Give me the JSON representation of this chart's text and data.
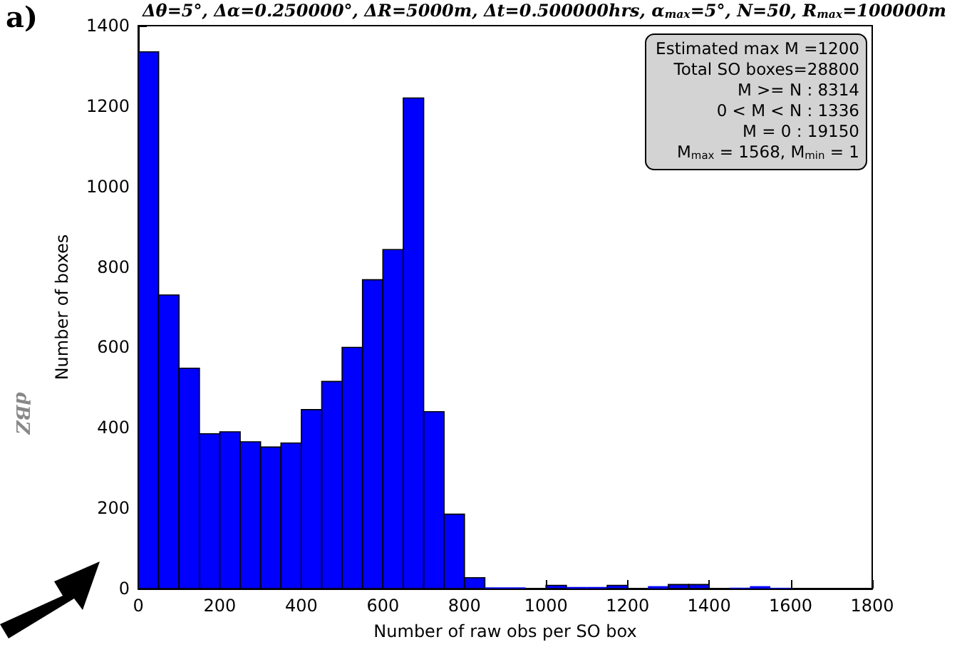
{
  "chart_data": {
    "type": "histogram",
    "title": "Δθ=5°, Δα=0.250000°, ΔR=5000m, Δt=0.500000hrs, α$_{max}$=5°, N=50, R$_{max}$=100000m",
    "xlabel": "Number of raw obs per SO box",
    "ylabel": "Number of boxes",
    "bins": [
      0,
      50,
      100,
      150,
      200,
      250,
      300,
      350,
      400,
      450,
      500,
      550,
      600,
      650,
      700,
      750,
      800,
      850,
      900,
      950,
      1000,
      1050,
      1100,
      1150,
      1200,
      1250,
      1300,
      1350,
      1400,
      1450,
      1500,
      1550,
      1600
    ],
    "values": [
      1335,
      730,
      548,
      385,
      390,
      365,
      352,
      362,
      445,
      515,
      600,
      768,
      843,
      1220,
      440,
      185,
      27,
      3,
      3,
      0,
      8,
      4,
      4,
      8,
      0,
      6,
      10,
      10,
      0,
      2,
      6,
      2
    ],
    "color": "#0000ff",
    "xlim": [
      0,
      1800
    ],
    "xticks": [
      0,
      200,
      400,
      600,
      800,
      1000,
      1200,
      1400,
      1600,
      1800
    ],
    "ylim": [
      0,
      1400
    ],
    "yticks": [
      0,
      200,
      400,
      600,
      800,
      1000,
      1200,
      1400
    ],
    "grid": false,
    "annotations": [
      "a)",
      "Estimated max M =1200",
      "Total SO boxes=28800",
      "M >= N : 8314",
      "0 < M < N : 1336",
      "M = 0 : 19150",
      "M$_{max}$ = 1568, M$_{min}$ = 1",
      "dBZ"
    ]
  }
}
